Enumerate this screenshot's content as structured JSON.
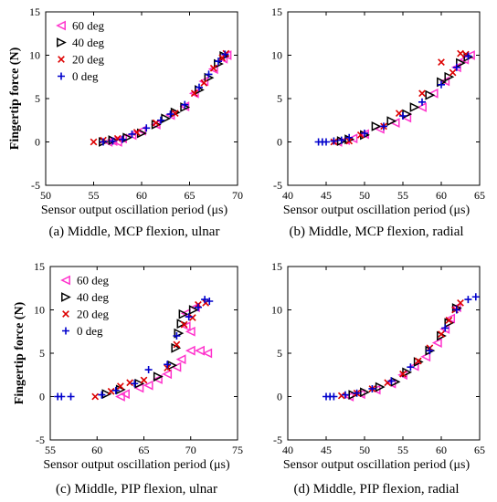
{
  "chart_data": [
    {
      "type": "scatter",
      "caption": "(a) Middle, MCP flexion, ulnar",
      "xlabel": "Sensor output oscillation period (μs)",
      "ylabel": "Fingertip force (N)",
      "xlim": [
        50,
        70
      ],
      "ylim": [
        -5,
        15
      ],
      "xticks": [
        50,
        55,
        60,
        65,
        70
      ],
      "yticks": [
        -5,
        0,
        5,
        10,
        15
      ],
      "legend": "top-left",
      "series": [
        {
          "name": "60 deg",
          "marker": "triangle-left",
          "color": "#ff33cc",
          "points": [
            [
              56.5,
              0.0
            ],
            [
              57.0,
              0.1
            ],
            [
              57.5,
              0.0
            ],
            [
              58.0,
              0.4
            ],
            [
              59.0,
              0.8
            ],
            [
              60.0,
              1.3
            ],
            [
              61.5,
              2.0
            ],
            [
              63.0,
              3.1
            ],
            [
              64.5,
              4.1
            ],
            [
              65.5,
              5.6
            ],
            [
              66.5,
              7.0
            ],
            [
              67.5,
              8.4
            ],
            [
              68.5,
              9.6
            ],
            [
              68.9,
              10.0
            ]
          ]
        },
        {
          "name": "40 deg",
          "marker": "triangle-right",
          "color": "#000000",
          "points": [
            [
              56.0,
              0.0
            ],
            [
              57.0,
              0.2
            ],
            [
              58.5,
              0.5
            ],
            [
              60.0,
              1.0
            ],
            [
              61.5,
              2.0
            ],
            [
              62.5,
              2.7
            ],
            [
              63.5,
              3.4
            ],
            [
              64.5,
              4.0
            ],
            [
              66.0,
              6.0
            ],
            [
              67.0,
              7.4
            ],
            [
              68.0,
              9.0
            ],
            [
              68.6,
              9.9
            ]
          ]
        },
        {
          "name": "20 deg",
          "marker": "x",
          "color": "#dd0000",
          "points": [
            [
              55.0,
              0.0
            ],
            [
              56.0,
              0.2
            ],
            [
              57.5,
              0.4
            ],
            [
              59.5,
              1.1
            ],
            [
              61.5,
              2.2
            ],
            [
              63.5,
              3.3
            ],
            [
              65.5,
              5.6
            ],
            [
              66.5,
              6.8
            ],
            [
              67.5,
              8.5
            ],
            [
              68.4,
              9.7
            ],
            [
              68.8,
              10.2
            ]
          ]
        },
        {
          "name": "0 deg",
          "marker": "plus",
          "color": "#0000cc",
          "points": [
            [
              56.0,
              0.0
            ],
            [
              57.0,
              0.1
            ],
            [
              58.0,
              0.3
            ],
            [
              59.0,
              0.9
            ],
            [
              60.5,
              1.6
            ],
            [
              62.0,
              2.5
            ],
            [
              63.0,
              3.2
            ],
            [
              64.5,
              4.3
            ],
            [
              66.0,
              6.3
            ],
            [
              67.0,
              7.8
            ],
            [
              68.0,
              9.3
            ],
            [
              68.7,
              10.1
            ]
          ]
        }
      ]
    },
    {
      "type": "scatter",
      "caption": "(b) Middle, MCP flexion, radial",
      "xlabel": "Sensor output oscillation period (μs)",
      "ylabel": "",
      "xlim": [
        40,
        65
      ],
      "ylim": [
        -5,
        15
      ],
      "xticks": [
        40,
        45,
        50,
        55,
        60,
        65
      ],
      "yticks": [
        -5,
        0,
        5,
        10,
        15
      ],
      "series": [
        {
          "name": "60 deg",
          "marker": "triangle-left",
          "color": "#ff33cc",
          "points": [
            [
              46.5,
              0.0
            ],
            [
              47.5,
              0.2
            ],
            [
              48.5,
              0.4
            ],
            [
              50.0,
              0.9
            ],
            [
              52.0,
              1.5
            ],
            [
              54.0,
              2.2
            ],
            [
              55.5,
              2.8
            ],
            [
              57.5,
              4.0
            ],
            [
              59.0,
              5.6
            ],
            [
              60.5,
              7.0
            ],
            [
              62.0,
              8.6
            ],
            [
              63.0,
              9.5
            ],
            [
              63.8,
              10.0
            ]
          ]
        },
        {
          "name": "40 deg",
          "marker": "triangle-right",
          "color": "#000000",
          "points": [
            [
              47.0,
              0.1
            ],
            [
              48.0,
              0.3
            ],
            [
              50.0,
              0.8
            ],
            [
              51.5,
              1.8
            ],
            [
              53.5,
              2.4
            ],
            [
              55.5,
              3.2
            ],
            [
              56.5,
              4.0
            ],
            [
              58.5,
              5.4
            ],
            [
              60.0,
              6.9
            ],
            [
              61.0,
              7.5
            ],
            [
              62.5,
              9.1
            ],
            [
              63.5,
              9.8
            ]
          ]
        },
        {
          "name": "20 deg",
          "marker": "x",
          "color": "#dd0000",
          "points": [
            [
              46.0,
              0.0
            ],
            [
              48.0,
              0.1
            ],
            [
              49.5,
              0.8
            ],
            [
              52.5,
              1.8
            ],
            [
              54.5,
              3.3
            ],
            [
              57.5,
              5.6
            ],
            [
              60.0,
              9.2
            ],
            [
              61.5,
              8.0
            ],
            [
              62.5,
              10.2
            ],
            [
              63.2,
              10.1
            ]
          ]
        },
        {
          "name": "0 deg",
          "marker": "plus",
          "color": "#0000cc",
          "points": [
            [
              44.0,
              0.0
            ],
            [
              44.5,
              0.0
            ],
            [
              45.0,
              0.0
            ],
            [
              46.0,
              0.1
            ],
            [
              47.0,
              0.2
            ],
            [
              48.0,
              0.5
            ],
            [
              50.0,
              1.0
            ],
            [
              52.5,
              1.8
            ],
            [
              55.0,
              3.0
            ],
            [
              57.5,
              4.6
            ],
            [
              60.0,
              6.6
            ],
            [
              62.0,
              8.6
            ],
            [
              63.5,
              9.9
            ]
          ]
        }
      ]
    },
    {
      "type": "scatter",
      "caption": "(c) Middle, PIP flexion, ulnar",
      "xlabel": "Sensor output oscillation period (μs)",
      "ylabel": "Fingertip force (N)",
      "xlim": [
        55,
        75
      ],
      "ylim": [
        -5,
        15
      ],
      "xticks": [
        55,
        60,
        65,
        70,
        75
      ],
      "yticks": [
        -5,
        0,
        5,
        10,
        15
      ],
      "legend": "top-left",
      "series": [
        {
          "name": "60 deg",
          "marker": "triangle-left",
          "color": "#ff33cc",
          "points": [
            [
              62.5,
              0.0
            ],
            [
              63.0,
              0.3
            ],
            [
              64.5,
              1.0
            ],
            [
              65.5,
              1.3
            ],
            [
              66.5,
              2.0
            ],
            [
              67.5,
              2.6
            ],
            [
              68.5,
              3.4
            ],
            [
              69.0,
              4.3
            ],
            [
              70.0,
              5.3
            ],
            [
              71.0,
              5.3
            ],
            [
              71.8,
              5.0
            ],
            [
              69.5,
              8.1
            ],
            [
              69.5,
              9.6
            ],
            [
              70.5,
              10.3
            ],
            [
              70.0,
              7.5
            ]
          ]
        },
        {
          "name": "40 deg",
          "marker": "triangle-right",
          "color": "#000000",
          "points": [
            [
              61.0,
              0.3
            ],
            [
              62.5,
              0.8
            ],
            [
              64.5,
              1.5
            ],
            [
              66.5,
              2.3
            ],
            [
              68.0,
              3.6
            ],
            [
              68.4,
              5.6
            ],
            [
              68.7,
              7.3
            ],
            [
              69.0,
              8.4
            ],
            [
              69.2,
              9.5
            ],
            [
              70.3,
              10.0
            ]
          ]
        },
        {
          "name": "20 deg",
          "marker": "x",
          "color": "#dd0000",
          "points": [
            [
              59.8,
              0.0
            ],
            [
              61.5,
              0.6
            ],
            [
              62.5,
              1.2
            ],
            [
              63.5,
              1.6
            ],
            [
              65.0,
              1.9
            ],
            [
              67.5,
              3.3
            ],
            [
              68.5,
              6.0
            ],
            [
              69.3,
              8.3
            ],
            [
              70.2,
              9.1
            ],
            [
              70.8,
              10.6
            ],
            [
              71.6,
              10.8
            ]
          ]
        },
        {
          "name": "0 deg",
          "marker": "plus",
          "color": "#0000cc",
          "points": [
            [
              55.8,
              0.0
            ],
            [
              56.2,
              0.0
            ],
            [
              57.2,
              0.0
            ],
            [
              60.5,
              0.2
            ],
            [
              62.0,
              0.7
            ],
            [
              64.0,
              1.5
            ],
            [
              65.5,
              3.1
            ],
            [
              67.5,
              3.7
            ],
            [
              68.5,
              7.0
            ],
            [
              69.8,
              9.2
            ],
            [
              70.8,
              10.3
            ],
            [
              71.5,
              11.2
            ],
            [
              72.0,
              11.0
            ]
          ]
        }
      ]
    },
    {
      "type": "scatter",
      "caption": "(d) Middle, PIP flexion, radial",
      "xlabel": "Sensor output oscillation period (μs)",
      "ylabel": "",
      "xlim": [
        40,
        65
      ],
      "ylim": [
        -5,
        15
      ],
      "xticks": [
        40,
        45,
        50,
        55,
        60,
        65
      ],
      "yticks": [
        -5,
        0,
        5,
        10,
        15
      ],
      "series": [
        {
          "name": "60 deg",
          "marker": "triangle-left",
          "color": "#ff33cc",
          "points": [
            [
              48.0,
              0.0
            ],
            [
              49.5,
              0.3
            ],
            [
              51.5,
              0.8
            ],
            [
              53.5,
              1.5
            ],
            [
              55.0,
              2.5
            ],
            [
              56.5,
              3.5
            ],
            [
              58.0,
              4.6
            ],
            [
              59.5,
              6.2
            ],
            [
              60.5,
              7.8
            ],
            [
              61.2,
              9.0
            ],
            [
              62.0,
              10.3
            ]
          ]
        },
        {
          "name": "40 deg",
          "marker": "triangle-right",
          "color": "#000000",
          "points": [
            [
              48.5,
              0.2
            ],
            [
              50.0,
              0.5
            ],
            [
              52.0,
              1.1
            ],
            [
              54.0,
              1.7
            ],
            [
              55.5,
              2.8
            ],
            [
              57.0,
              4.0
            ],
            [
              58.5,
              5.3
            ],
            [
              60.0,
              7.0
            ],
            [
              61.0,
              8.5
            ],
            [
              62.0,
              10.2
            ]
          ]
        },
        {
          "name": "20 deg",
          "marker": "x",
          "color": "#dd0000",
          "points": [
            [
              47.0,
              0.1
            ],
            [
              49.0,
              0.4
            ],
            [
              51.0,
              0.9
            ],
            [
              53.0,
              1.6
            ],
            [
              55.0,
              2.6
            ],
            [
              57.0,
              4.1
            ],
            [
              58.5,
              5.6
            ],
            [
              60.0,
              7.2
            ],
            [
              61.0,
              8.8
            ],
            [
              61.8,
              10.0
            ],
            [
              62.5,
              10.8
            ]
          ]
        },
        {
          "name": "0 deg",
          "marker": "plus",
          "color": "#0000cc",
          "points": [
            [
              45.0,
              0.0
            ],
            [
              45.5,
              0.0
            ],
            [
              46.0,
              0.0
            ],
            [
              47.5,
              0.2
            ],
            [
              49.0,
              0.4
            ],
            [
              51.0,
              0.9
            ],
            [
              53.5,
              1.8
            ],
            [
              56.0,
              3.4
            ],
            [
              58.5,
              5.3
            ],
            [
              60.5,
              7.9
            ],
            [
              62.0,
              10.0
            ],
            [
              63.5,
              11.2
            ],
            [
              64.5,
              11.5
            ]
          ]
        }
      ]
    }
  ]
}
